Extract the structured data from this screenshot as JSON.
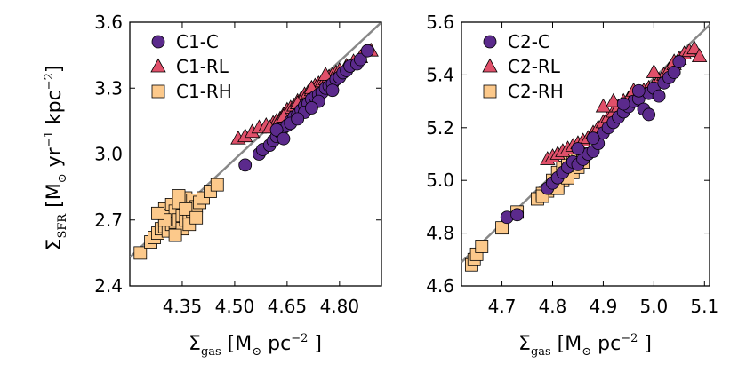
{
  "chart_data": [
    {
      "type": "scatter",
      "xlabel": "Σgas [M⊙ pc−2 ]",
      "ylabel": "ΣSFR [M⊙ yr−1 kpc−2]",
      "xlim": [
        4.2,
        4.92
      ],
      "ylim": [
        2.4,
        3.6
      ],
      "xticks": [
        "4.35",
        "4.50",
        "4.65",
        "4.80"
      ],
      "xtick_values": [
        4.35,
        4.5,
        4.65,
        4.8
      ],
      "yticks": [
        "2.4",
        "2.7",
        "3.0",
        "3.3",
        "3.6"
      ],
      "ytick_values": [
        2.4,
        2.7,
        3.0,
        3.3,
        3.6
      ],
      "legend_position": "top-left",
      "fit_line": {
        "x": [
          4.2,
          4.92
        ],
        "y": [
          2.53,
          3.6
        ],
        "color": "#888888"
      },
      "series": [
        {
          "name": "C1-C",
          "marker": "circle",
          "color": "#5b2a8c",
          "x": [
            4.53,
            4.57,
            4.58,
            4.6,
            4.61,
            4.62,
            4.63,
            4.64,
            4.65,
            4.66,
            4.67,
            4.68,
            4.69,
            4.7,
            4.71,
            4.72,
            4.73,
            4.74,
            4.75,
            4.76,
            4.77,
            4.78,
            4.79,
            4.8,
            4.81,
            4.82,
            4.83,
            4.85,
            4.86,
            4.88,
            4.62,
            4.66,
            4.7,
            4.74,
            4.78,
            4.64,
            4.68,
            4.72
          ],
          "y": [
            2.95,
            3.0,
            3.02,
            3.04,
            3.06,
            3.08,
            3.1,
            3.12,
            3.13,
            3.15,
            3.17,
            3.18,
            3.2,
            3.22,
            3.23,
            3.25,
            3.26,
            3.27,
            3.28,
            3.3,
            3.31,
            3.32,
            3.34,
            3.35,
            3.37,
            3.38,
            3.4,
            3.41,
            3.43,
            3.47,
            3.11,
            3.14,
            3.19,
            3.24,
            3.29,
            3.07,
            3.16,
            3.21
          ]
        },
        {
          "name": "C1-RL",
          "marker": "triangle",
          "color": "#e0506a",
          "x": [
            4.51,
            4.53,
            4.55,
            4.57,
            4.59,
            4.61,
            4.62,
            4.63,
            4.64,
            4.65,
            4.66,
            4.67,
            4.68,
            4.69,
            4.7,
            4.71,
            4.72,
            4.73,
            4.74,
            4.75,
            4.76,
            4.77,
            4.78,
            4.79,
            4.8,
            4.82,
            4.84,
            4.86,
            4.89,
            4.6,
            4.64,
            4.68,
            4.72,
            4.76
          ],
          "y": [
            3.07,
            3.08,
            3.1,
            3.12,
            3.13,
            3.14,
            3.15,
            3.16,
            3.18,
            3.2,
            3.21,
            3.22,
            3.24,
            3.25,
            3.27,
            3.28,
            3.29,
            3.31,
            3.32,
            3.33,
            3.34,
            3.35,
            3.36,
            3.37,
            3.38,
            3.4,
            3.42,
            3.44,
            3.47,
            3.12,
            3.17,
            3.23,
            3.3,
            3.36
          ]
        },
        {
          "name": "C1-RH",
          "marker": "square",
          "color": "#fcc98b",
          "x": [
            4.23,
            4.26,
            4.27,
            4.28,
            4.29,
            4.3,
            4.3,
            4.31,
            4.31,
            4.32,
            4.32,
            4.33,
            4.33,
            4.34,
            4.34,
            4.35,
            4.35,
            4.36,
            4.36,
            4.37,
            4.37,
            4.38,
            4.38,
            4.39,
            4.4,
            4.41,
            4.43,
            4.45,
            4.3,
            4.33,
            4.36,
            4.39,
            4.28,
            4.34
          ],
          "y": [
            2.55,
            2.6,
            2.62,
            2.64,
            2.66,
            2.67,
            2.75,
            2.65,
            2.72,
            2.68,
            2.77,
            2.69,
            2.74,
            2.7,
            2.78,
            2.66,
            2.72,
            2.7,
            2.8,
            2.73,
            2.68,
            2.74,
            2.79,
            2.76,
            2.78,
            2.8,
            2.83,
            2.86,
            2.7,
            2.63,
            2.75,
            2.71,
            2.73,
            2.81
          ]
        }
      ]
    },
    {
      "type": "scatter",
      "xlabel": "Σgas [M⊙ pc−2 ]",
      "ylabel": "",
      "xlim": [
        4.62,
        5.11
      ],
      "ylim": [
        4.6,
        5.6
      ],
      "xticks": [
        "4.7",
        "4.8",
        "4.9",
        "5.0",
        "5.1"
      ],
      "xtick_values": [
        4.7,
        4.8,
        4.9,
        5.0,
        5.1
      ],
      "yticks": [
        "4.6",
        "4.8",
        "5.0",
        "5.2",
        "5.4",
        "5.6"
      ],
      "ytick_values": [
        4.6,
        4.8,
        5.0,
        5.2,
        5.4,
        5.6
      ],
      "legend_position": "top-left",
      "fit_line": {
        "x": [
          4.62,
          5.11
        ],
        "y": [
          4.69,
          5.59
        ],
        "color": "#888888"
      },
      "series": [
        {
          "name": "C2-C",
          "marker": "circle",
          "color": "#5b2a8c",
          "x": [
            4.71,
            4.73,
            4.79,
            4.8,
            4.81,
            4.82,
            4.83,
            4.84,
            4.85,
            4.86,
            4.87,
            4.88,
            4.89,
            4.9,
            4.91,
            4.92,
            4.93,
            4.94,
            4.95,
            4.96,
            4.97,
            4.98,
            4.99,
            5.0,
            5.01,
            5.02,
            5.03,
            5.04,
            5.05,
            4.97,
            4.99,
            4.94,
            4.88,
            4.85
          ],
          "y": [
            4.86,
            4.87,
            4.97,
            4.99,
            5.01,
            5.03,
            5.05,
            5.07,
            5.06,
            5.08,
            5.1,
            5.11,
            5.14,
            5.18,
            5.2,
            5.22,
            5.24,
            5.26,
            5.28,
            5.3,
            5.31,
            5.27,
            5.33,
            5.35,
            5.32,
            5.37,
            5.39,
            5.41,
            5.45,
            5.34,
            5.25,
            5.29,
            5.16,
            5.12
          ]
        },
        {
          "name": "C2-RL",
          "marker": "triangle",
          "color": "#e0506a",
          "x": [
            4.79,
            4.8,
            4.81,
            4.82,
            4.83,
            4.84,
            4.85,
            4.86,
            4.87,
            4.88,
            4.89,
            4.9,
            4.91,
            4.92,
            4.93,
            4.94,
            4.95,
            4.96,
            4.97,
            4.98,
            4.99,
            5.0,
            5.01,
            5.02,
            5.03,
            5.04,
            5.05,
            5.06,
            5.07,
            5.08,
            5.09,
            4.9,
            4.92,
            4.96,
            5.0,
            5.04
          ],
          "y": [
            5.08,
            5.09,
            5.1,
            5.11,
            5.12,
            5.13,
            5.14,
            5.15,
            5.16,
            5.18,
            5.2,
            5.22,
            5.24,
            5.26,
            5.28,
            5.3,
            5.31,
            5.32,
            5.33,
            5.34,
            5.35,
            5.36,
            5.38,
            5.4,
            5.42,
            5.44,
            5.46,
            5.48,
            5.49,
            5.5,
            5.47,
            5.28,
            5.3,
            5.34,
            5.41,
            5.45
          ]
        },
        {
          "name": "C2-RH",
          "marker": "square",
          "color": "#fcc98b",
          "x": [
            4.64,
            4.645,
            4.65,
            4.66,
            4.7,
            4.73,
            4.77,
            4.78,
            4.79,
            4.8,
            4.8,
            4.81,
            4.81,
            4.82,
            4.82,
            4.83,
            4.83,
            4.84,
            4.84,
            4.85,
            4.85,
            4.86,
            4.86,
            4.78,
            4.81,
            4.83
          ],
          "y": [
            4.68,
            4.7,
            4.72,
            4.75,
            4.82,
            4.88,
            4.93,
            4.95,
            4.96,
            4.97,
            5.0,
            4.98,
            5.03,
            5.0,
            5.05,
            5.02,
            5.07,
            5.03,
            5.08,
            5.05,
            5.09,
            5.07,
            5.1,
            4.94,
            4.97,
            5.01
          ]
        }
      ]
    }
  ]
}
